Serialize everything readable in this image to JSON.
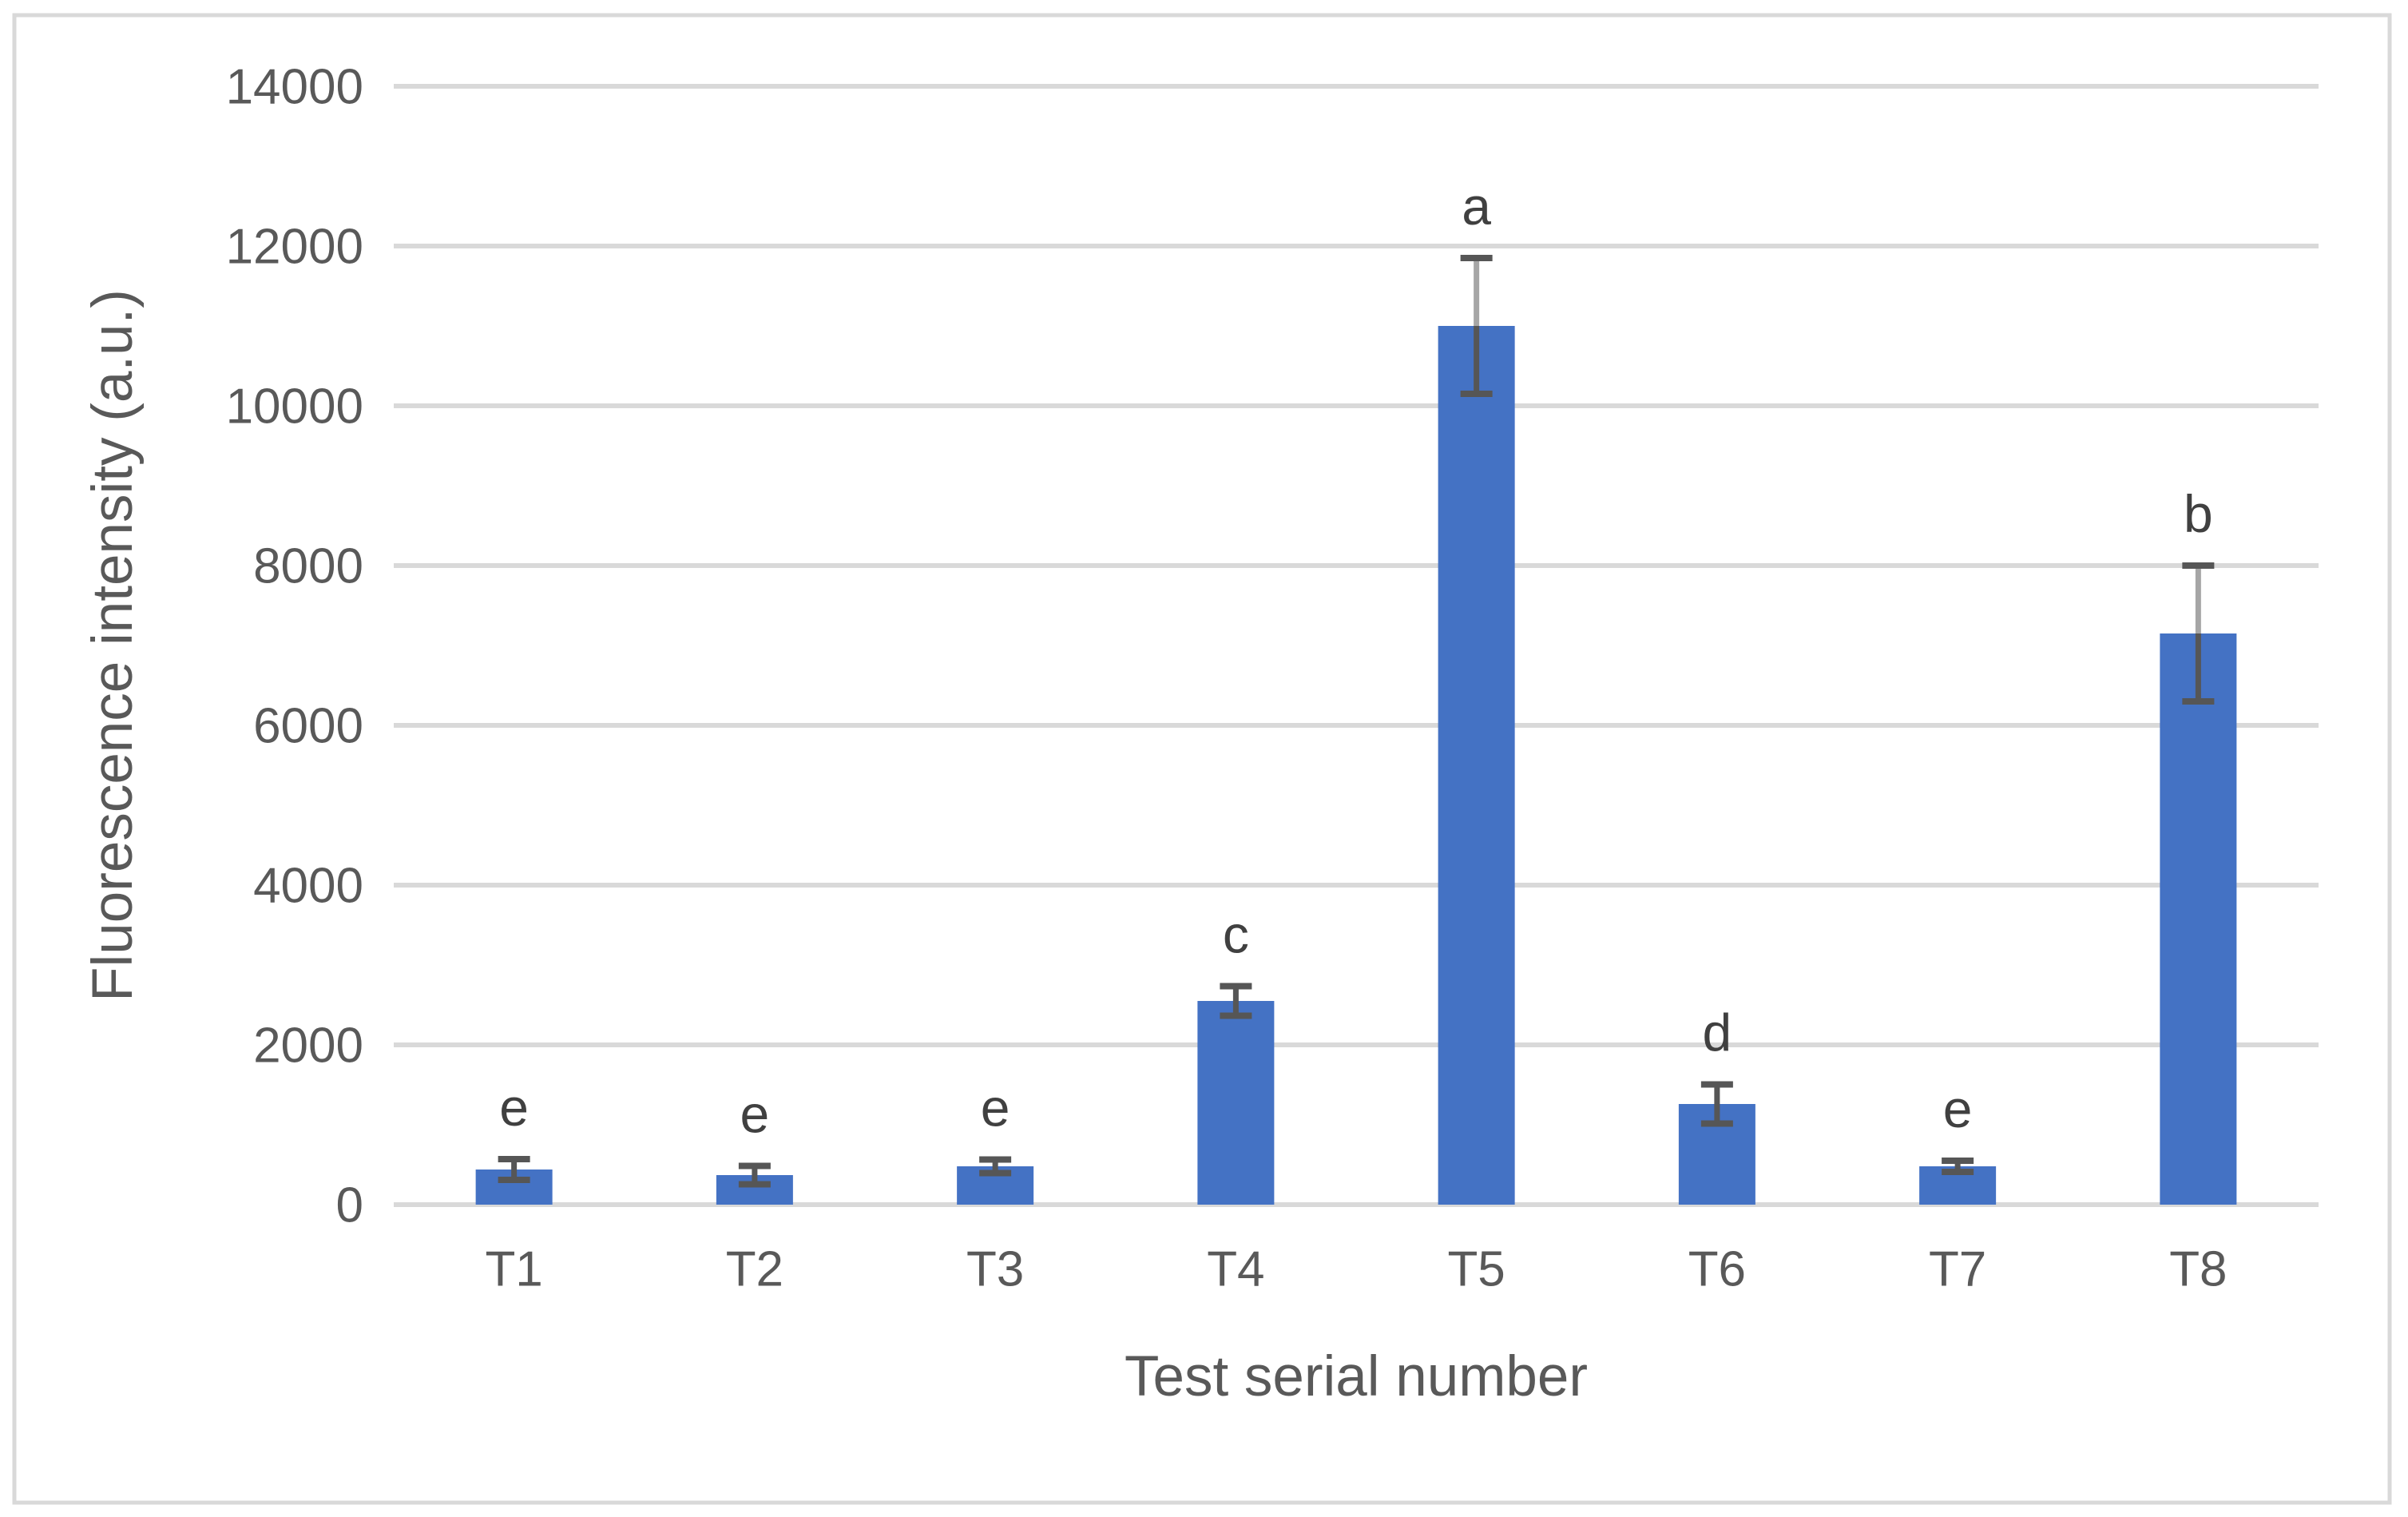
{
  "chart_data": {
    "type": "bar",
    "title": "",
    "categories": [
      "T1",
      "T2",
      "T3",
      "T4",
      "T5",
      "T6",
      "T7",
      "T8"
    ],
    "values": [
      440,
      370,
      480,
      2550,
      11000,
      1260,
      480,
      7150
    ],
    "errors": [
      130,
      115,
      85,
      185,
      850,
      245,
      70,
      850
    ],
    "sig_letters": [
      "e",
      "e",
      "e",
      "c",
      "a",
      "d",
      "e",
      "b"
    ],
    "xlabel": "Test serial number",
    "ylabel": "Fluorescence intensity (a.u.)",
    "ylim": [
      0,
      14000
    ],
    "ytick_step": 2000,
    "ytick_labels": [
      "0",
      "2000",
      "4000",
      "6000",
      "8000",
      "10000",
      "12000",
      "14000"
    ],
    "grid": "horizontal",
    "legend_position": "none",
    "colors": {
      "bar_fill": "#4472C4",
      "gridline": "#D9D9D9",
      "chart_border": "#D9D9D9",
      "axis_line": "#D9D9D9",
      "axis_text": "#595959",
      "letter_text": "#404040",
      "error_bar_dark": "#565656",
      "error_bar_light": "#A6A6A6",
      "background": "#FFFFFF"
    }
  }
}
